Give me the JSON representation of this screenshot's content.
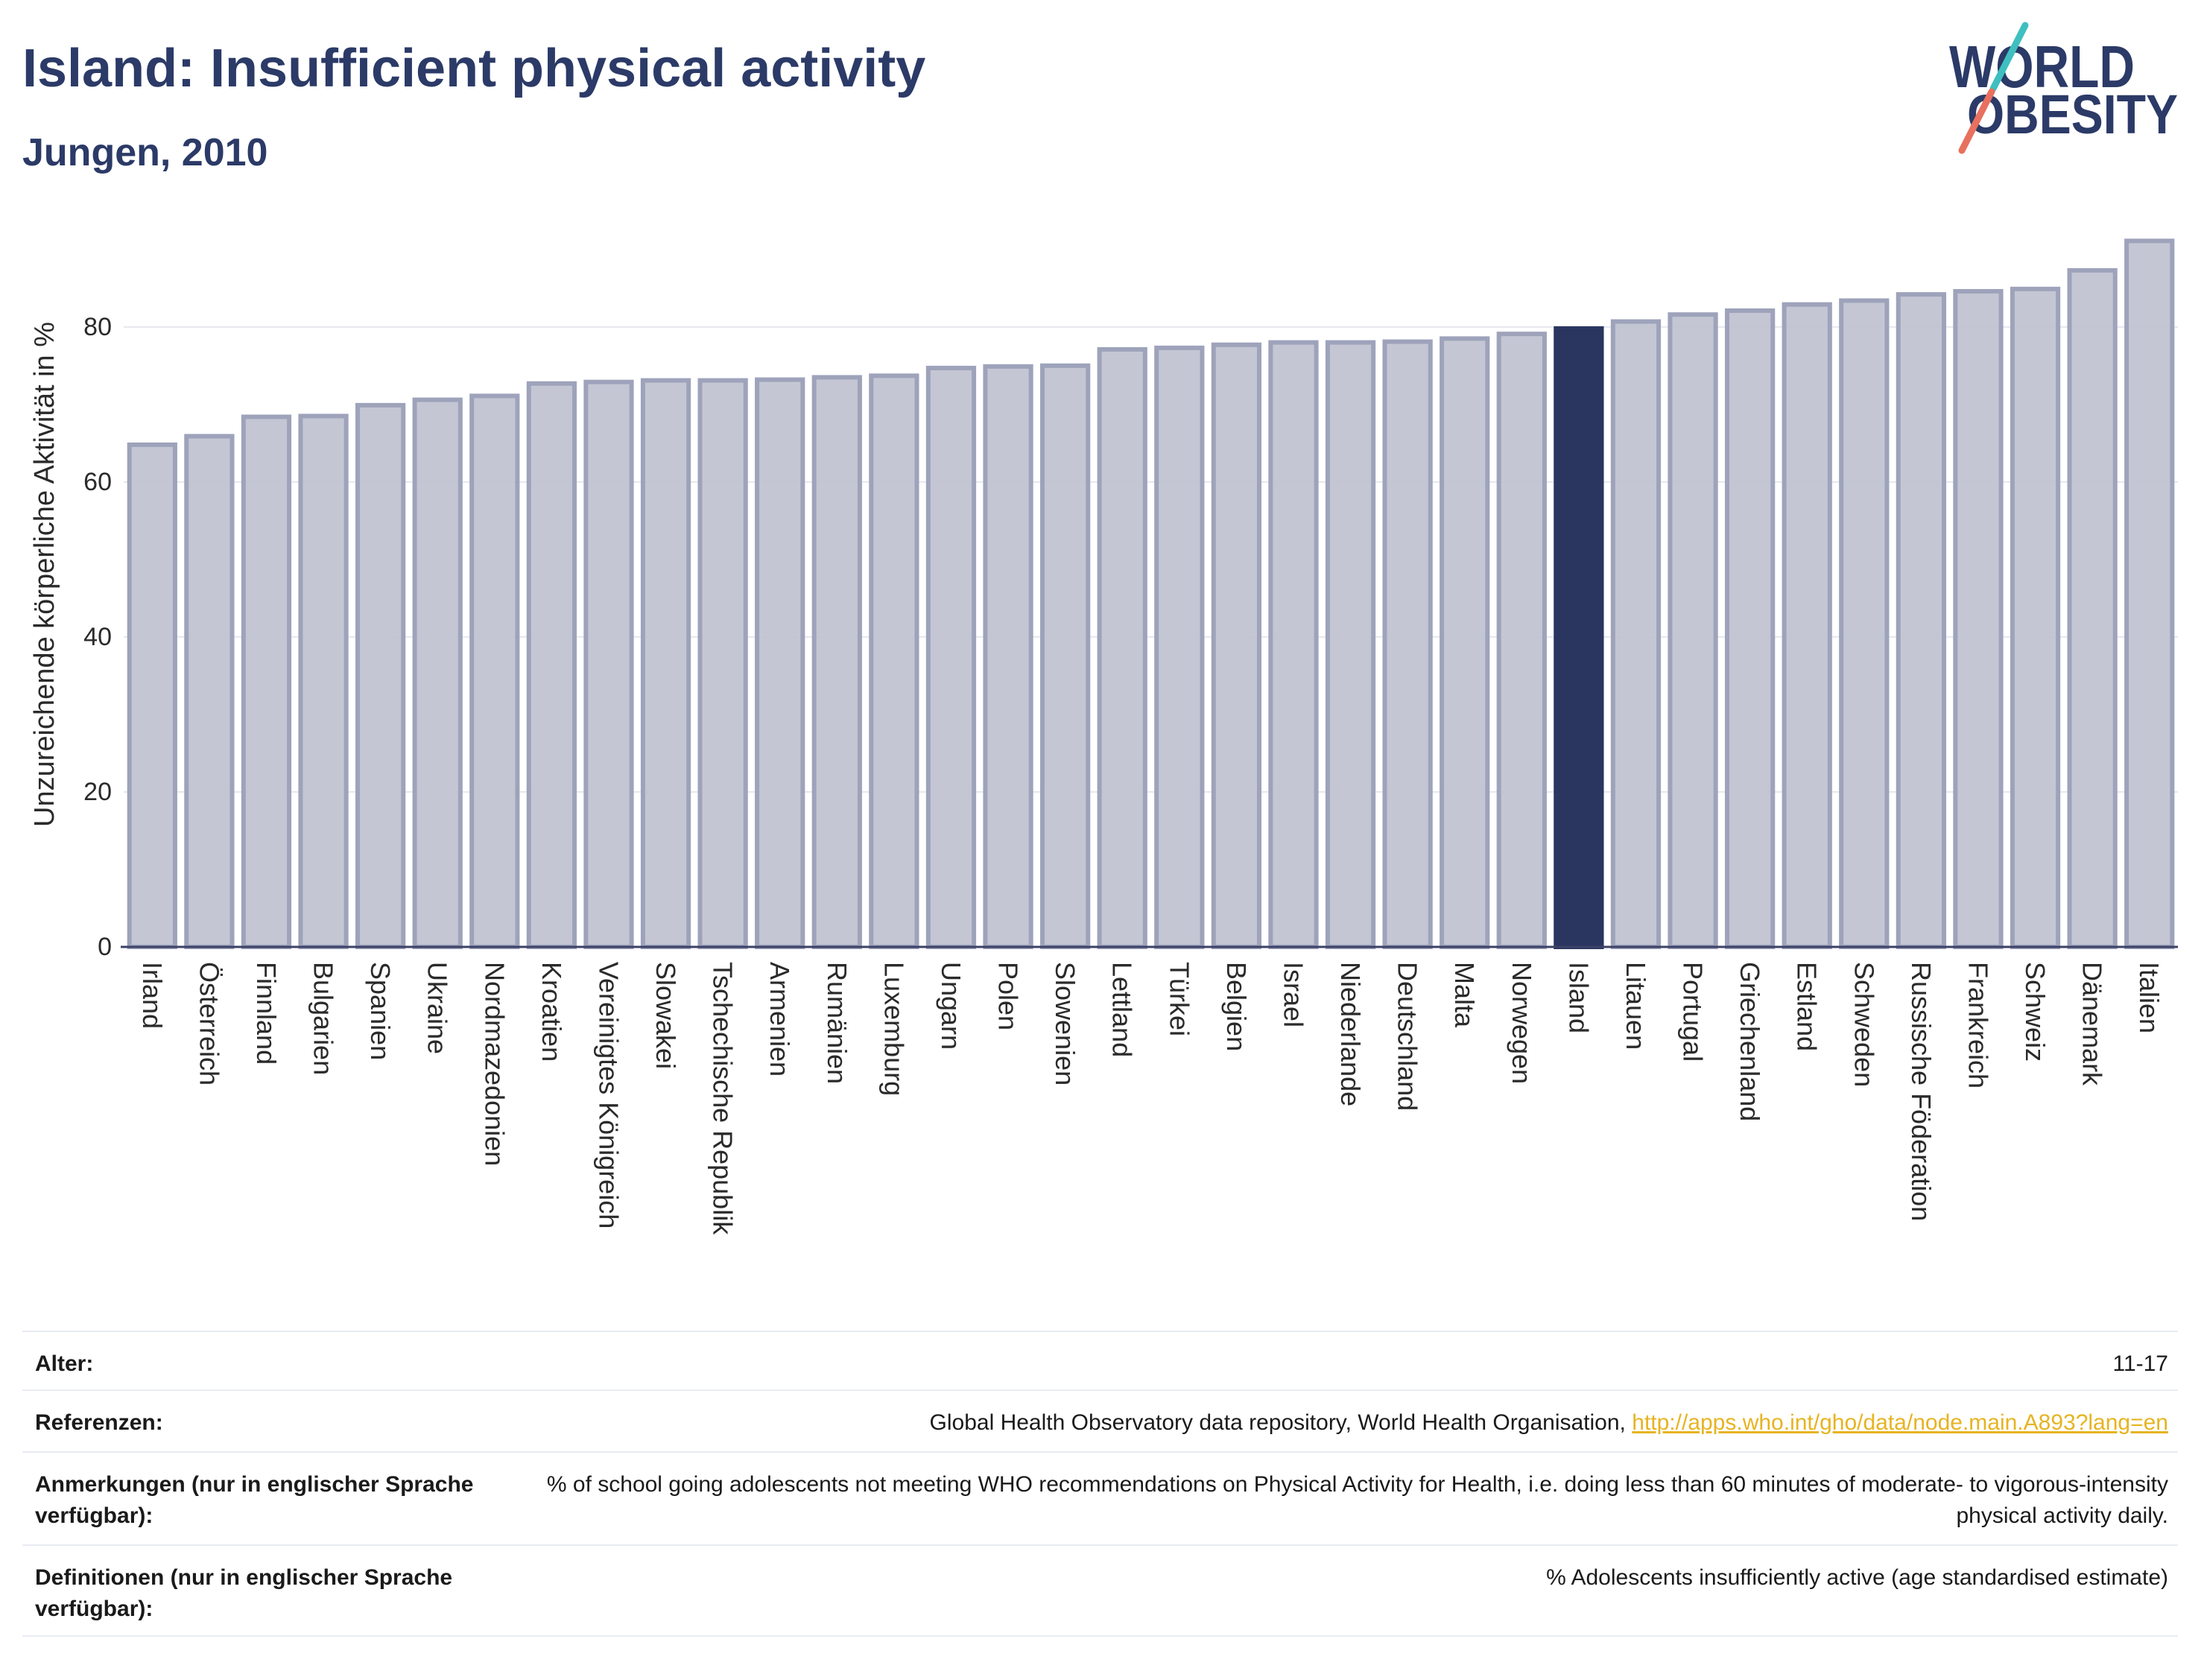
{
  "logo": {
    "line1": "WORLD",
    "line2": "OBESITY"
  },
  "colors": {
    "title": "#2b3a67",
    "bar_fill": "#bfc1cf",
    "bar_stroke": "#9ea3bb",
    "highlight_fill": "#2a3560",
    "axis": "#3b4266",
    "grid": "#e6e8ef",
    "link": "#e6b422",
    "logo_teal": "#3fbfbf",
    "logo_coral": "#e8705e"
  },
  "chart_data": {
    "type": "bar",
    "title": "Island: Insufficient physical activity",
    "subtitle": "Jungen, 2010",
    "xlabel": "",
    "ylabel": "Unzureichende körperliche Aktivität in %",
    "ylim": [
      0,
      92
    ],
    "yticks": [
      0,
      20,
      40,
      60,
      80
    ],
    "grid": true,
    "highlight": "Island",
    "categories": [
      "Irland",
      "Österreich",
      "Finnland",
      "Bulgarien",
      "Spanien",
      "Ukraine",
      "Nordmazedonien",
      "Kroatien",
      "Vereinigtes Königreich",
      "Slowakei",
      "Tschechische Republik",
      "Armenien",
      "Rumänien",
      "Luxemburg",
      "Ungarn",
      "Polen",
      "Slowenien",
      "Lettland",
      "Türkei",
      "Belgien",
      "Israel",
      "Niederlande",
      "Deutschland",
      "Malta",
      "Norwegen",
      "Island",
      "Litauen",
      "Portugal",
      "Griechenland",
      "Estland",
      "Schweden",
      "Russische Föderation",
      "Frankreich",
      "Schweiz",
      "Dänemark",
      "Italien"
    ],
    "values": [
      64.8,
      65.9,
      68.4,
      68.5,
      69.9,
      70.6,
      71.1,
      72.7,
      72.9,
      73.1,
      73.1,
      73.2,
      73.5,
      73.7,
      74.7,
      74.9,
      75.0,
      77.1,
      77.3,
      77.7,
      78.0,
      78.0,
      78.1,
      78.5,
      79.1,
      79.8,
      80.7,
      81.6,
      82.1,
      82.9,
      83.4,
      84.2,
      84.6,
      84.9,
      87.3,
      91.1
    ]
  },
  "info": {
    "age": {
      "label": "Alter:",
      "value": "11-17"
    },
    "references": {
      "label": "Referenzen:",
      "value": "Global Health Observatory data repository, World Health Organisation,",
      "link": "http://apps.who.int/gho/data/node.main.A893?lang=en"
    },
    "notes": {
      "label": "Anmerkungen (nur in englischer Sprache verfügbar):",
      "value": "% of school going adolescents not meeting WHO recommendations on Physical Activity for Health, i.e. doing less than 60 minutes of moderate- to vigorous-intensity physical activity daily."
    },
    "definitions": {
      "label": "Definitionen (nur in englischer Sprache verfügbar):",
      "value": "% Adolescents insufficiently active (age standardised estimate)"
    }
  }
}
